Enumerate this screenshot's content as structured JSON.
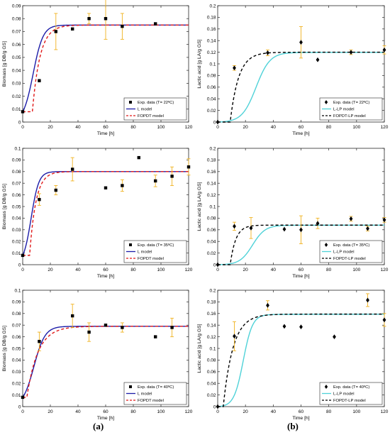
{
  "panel_labels": {
    "a": "(a)",
    "b": "(b)"
  },
  "chart_data": [
    {
      "type": "scatter",
      "ylabel": "Biomass [g DB/g GS]",
      "xlabel": "Time [h]",
      "xlim": [
        0,
        120
      ],
      "ylim": [
        0,
        0.09
      ],
      "xticks": [
        0,
        20,
        40,
        60,
        80,
        100,
        120
      ],
      "yticks": [
        0,
        0.01,
        0.02,
        0.03,
        0.04,
        0.05,
        0.06,
        0.07,
        0.08,
        0.09
      ],
      "ytick_labels": [
        "0",
        "0.01",
        "0.02",
        "0.03",
        "0.04",
        "0.05",
        "0.06",
        "0.07",
        "0.08",
        "0.09"
      ],
      "legend": [
        "Exp. data (T= 22ºC)",
        "L model",
        "FOPDT model"
      ],
      "legend_position": "bottom-right",
      "marker": "square",
      "points": [
        {
          "x": 0,
          "y": 0.008
        },
        {
          "x": 12,
          "y": 0.032
        },
        {
          "x": 24,
          "y": 0.07,
          "err": 0.014
        },
        {
          "x": 36,
          "y": 0.072
        },
        {
          "x": 48,
          "y": 0.08,
          "err": 0.004
        },
        {
          "x": 60,
          "y": 0.08,
          "err": 0.016
        },
        {
          "x": 72,
          "y": 0.074,
          "err": 0.01
        },
        {
          "x": 96,
          "y": 0.076
        }
      ],
      "models": [
        {
          "name": "L model",
          "kind": "logistic",
          "y0": 0.008,
          "ymax": 0.075,
          "k": 0.28,
          "color": "#1c1ca8",
          "dash": ""
        },
        {
          "name": "FOPDT model",
          "kind": "fopdt",
          "y0": 0.008,
          "ymax": 0.075,
          "delay": 7,
          "tau": 5.5,
          "color": "#e01818",
          "dash": "4,3"
        }
      ]
    },
    {
      "type": "scatter",
      "ylabel": "Lactic acid [g LA/g GS]",
      "xlabel": "Time [h]",
      "xlim": [
        0,
        120
      ],
      "ylim": [
        0,
        0.2
      ],
      "xticks": [
        0,
        20,
        40,
        60,
        80,
        100,
        120
      ],
      "yticks": [
        0,
        0.02,
        0.04,
        0.06,
        0.08,
        0.1,
        0.12,
        0.14,
        0.16,
        0.18,
        0.2
      ],
      "ytick_labels": [
        "0",
        "0.02",
        "0.04",
        "0.06",
        "0.08",
        "0.1",
        "0.12",
        "0.14",
        "0.16",
        "0.18",
        "0.2"
      ],
      "legend": [
        "Exp. data (T= 22ºC)",
        "L-LP model",
        "FOPDT-LP model"
      ],
      "legend_position": "bottom-right",
      "marker": "diamond",
      "points": [
        {
          "x": 0,
          "y": 0
        },
        {
          "x": 12,
          "y": 0.093,
          "err": 0.004
        },
        {
          "x": 36,
          "y": 0.119,
          "err": 0.005
        },
        {
          "x": 60,
          "y": 0.137,
          "err": 0.027
        },
        {
          "x": 72,
          "y": 0.107
        },
        {
          "x": 96,
          "y": 0.12,
          "err": 0.004
        },
        {
          "x": 120,
          "y": 0.124,
          "err": 0.007
        }
      ],
      "models": [
        {
          "name": "L-LP model",
          "kind": "logistic",
          "y0": 0,
          "ymax": 0.12,
          "k": 0.2,
          "color": "#4fd2d8",
          "dash": ""
        },
        {
          "name": "FOPDT-LP model",
          "kind": "fopdt",
          "y0": 0,
          "ymax": 0.12,
          "delay": 9,
          "tau": 6,
          "color": "#000000",
          "dash": "4,3"
        }
      ]
    },
    {
      "type": "scatter",
      "ylabel": "Biomass [g DB/g GS]",
      "xlabel": "Time [h]",
      "xlim": [
        0,
        120
      ],
      "ylim": [
        0,
        0.1
      ],
      "xticks": [
        0,
        20,
        40,
        60,
        80,
        100,
        120
      ],
      "yticks": [
        0,
        0.01,
        0.02,
        0.03,
        0.04,
        0.05,
        0.06,
        0.07,
        0.08,
        0.09,
        0.1
      ],
      "ytick_labels": [
        "0",
        "0.01",
        "0.02",
        "0.03",
        "0.04",
        "0.05",
        "0.06",
        "0.07",
        "0.08",
        "0.09",
        "0.1"
      ],
      "legend": [
        "Exp. data (T= 35ºC)",
        "L model",
        "FOPDT model"
      ],
      "legend_position": "bottom-right",
      "marker": "square",
      "points": [
        {
          "x": 0,
          "y": 0.008
        },
        {
          "x": 12,
          "y": 0.056,
          "err": 0.005
        },
        {
          "x": 24,
          "y": 0.064,
          "err": 0.004
        },
        {
          "x": 36,
          "y": 0.082,
          "err": 0.01
        },
        {
          "x": 60,
          "y": 0.066
        },
        {
          "x": 72,
          "y": 0.068,
          "err": 0.005
        },
        {
          "x": 84,
          "y": 0.092
        },
        {
          "x": 96,
          "y": 0.072,
          "err": 0.005
        },
        {
          "x": 108,
          "y": 0.076,
          "err": 0.008
        },
        {
          "x": 120,
          "y": 0.084,
          "err": 0.007
        }
      ],
      "models": [
        {
          "name": "L model",
          "kind": "logistic",
          "y0": 0.008,
          "ymax": 0.08,
          "k": 0.36,
          "color": "#1c1ca8",
          "dash": ""
        },
        {
          "name": "FOPDT model",
          "kind": "fopdt",
          "y0": 0.008,
          "ymax": 0.08,
          "delay": 5,
          "tau": 4.5,
          "color": "#e01818",
          "dash": "4,3"
        }
      ]
    },
    {
      "type": "scatter",
      "ylabel": "Lactic acid [g LA/g GS]",
      "xlabel": "Time [h]",
      "xlim": [
        0,
        120
      ],
      "ylim": [
        0,
        0.2
      ],
      "xticks": [
        0,
        20,
        40,
        60,
        80,
        100,
        120
      ],
      "yticks": [
        0,
        0.02,
        0.04,
        0.06,
        0.08,
        0.1,
        0.12,
        0.14,
        0.16,
        0.18,
        0.2
      ],
      "ytick_labels": [
        "0",
        "0.02",
        "0.04",
        "0.06",
        "0.08",
        "0.1",
        "0.12",
        "0.14",
        "0.16",
        "0.18",
        "0.2"
      ],
      "legend": [
        "Exp. data (T= 35ºC)",
        "L-LP model",
        "FOPDT-LP model"
      ],
      "legend_position": "bottom-right",
      "marker": "diamond",
      "points": [
        {
          "x": 0,
          "y": 0
        },
        {
          "x": 12,
          "y": 0.066,
          "err": 0.007
        },
        {
          "x": 24,
          "y": 0.063,
          "err": 0.018
        },
        {
          "x": 48,
          "y": 0.061
        },
        {
          "x": 60,
          "y": 0.06,
          "err": 0.024
        },
        {
          "x": 72,
          "y": 0.071,
          "err": 0.009
        },
        {
          "x": 96,
          "y": 0.079,
          "err": 0.004
        },
        {
          "x": 108,
          "y": 0.062,
          "err": 0.004
        },
        {
          "x": 120,
          "y": 0.077,
          "err": 0.004
        }
      ],
      "models": [
        {
          "name": "L-LP model",
          "kind": "logistic",
          "y0": 0,
          "ymax": 0.068,
          "k": 0.22,
          "color": "#4fd2d8",
          "dash": ""
        },
        {
          "name": "FOPDT-LP model",
          "kind": "fopdt",
          "y0": 0,
          "ymax": 0.068,
          "delay": 9,
          "tau": 4,
          "color": "#000000",
          "dash": "4,3"
        }
      ]
    },
    {
      "type": "scatter",
      "ylabel": "Biomass [g DB/g GS]",
      "xlabel": "Time [h]",
      "xlim": [
        0,
        120
      ],
      "ylim": [
        0,
        0.1
      ],
      "xticks": [
        0,
        20,
        40,
        60,
        80,
        100,
        120
      ],
      "yticks": [
        0,
        0.01,
        0.02,
        0.03,
        0.04,
        0.05,
        0.06,
        0.07,
        0.08,
        0.09,
        0.1
      ],
      "ytick_labels": [
        "0",
        "0.01",
        "0.02",
        "0.03",
        "0.04",
        "0.05",
        "0.06",
        "0.07",
        "0.08",
        "0.09",
        "0.1"
      ],
      "legend": [
        "Exp. data (T= 40ºC)",
        "L model",
        "FOPDT model"
      ],
      "legend_position": "bottom-right",
      "marker": "square",
      "points": [
        {
          "x": 0,
          "y": 0.008
        },
        {
          "x": 12,
          "y": 0.056,
          "err": 0.008
        },
        {
          "x": 36,
          "y": 0.078,
          "err": 0.01
        },
        {
          "x": 48,
          "y": 0.064,
          "err": 0.008
        },
        {
          "x": 60,
          "y": 0.07
        },
        {
          "x": 72,
          "y": 0.068,
          "err": 0.004
        },
        {
          "x": 96,
          "y": 0.06
        },
        {
          "x": 108,
          "y": 0.068,
          "err": 0.008
        }
      ],
      "models": [
        {
          "name": "L model",
          "kind": "logistic",
          "y0": 0.008,
          "ymax": 0.069,
          "k": 0.25,
          "color": "#1c1ca8",
          "dash": ""
        },
        {
          "name": "FOPDT model",
          "kind": "fopdt",
          "y0": 0.008,
          "ymax": 0.069,
          "delay": 3,
          "tau": 8,
          "color": "#e01818",
          "dash": "4,3"
        }
      ]
    },
    {
      "type": "scatter",
      "ylabel": "Lactic acid [g LA/g GS]",
      "xlabel": "Time [h]",
      "xlim": [
        0,
        120
      ],
      "ylim": [
        0,
        0.2
      ],
      "xticks": [
        0,
        20,
        40,
        60,
        80,
        100,
        120
      ],
      "yticks": [
        0,
        0.02,
        0.04,
        0.06,
        0.08,
        0.1,
        0.12,
        0.14,
        0.16,
        0.18,
        0.2
      ],
      "ytick_labels": [
        "0",
        "0.02",
        "0.04",
        "0.06",
        "0.08",
        "0.1",
        "0.12",
        "0.14",
        "0.16",
        "0.18",
        "0.2"
      ],
      "legend": [
        "Exp. data (T= 40ºC)",
        "L-LP model",
        "FOPDT-LP model"
      ],
      "legend_position": "bottom-right",
      "marker": "diamond",
      "points": [
        {
          "x": 0,
          "y": 0
        },
        {
          "x": 12,
          "y": 0.121,
          "err": 0.025
        },
        {
          "x": 36,
          "y": 0.174,
          "err": 0.008
        },
        {
          "x": 48,
          "y": 0.138
        },
        {
          "x": 60,
          "y": 0.137
        },
        {
          "x": 84,
          "y": 0.12
        },
        {
          "x": 108,
          "y": 0.183,
          "err": 0.011
        },
        {
          "x": 120,
          "y": 0.149,
          "err": 0.011
        }
      ],
      "models": [
        {
          "name": "L-LP model",
          "kind": "logistic",
          "y0": 0,
          "ymax": 0.159,
          "k": 0.3,
          "color": "#4fd2d8",
          "dash": ""
        },
        {
          "name": "FOPDT-LP model",
          "kind": "fopdt",
          "y0": 0,
          "ymax": 0.159,
          "delay": 4,
          "tau": 7,
          "color": "#000000",
          "dash": "4,3"
        }
      ]
    }
  ]
}
